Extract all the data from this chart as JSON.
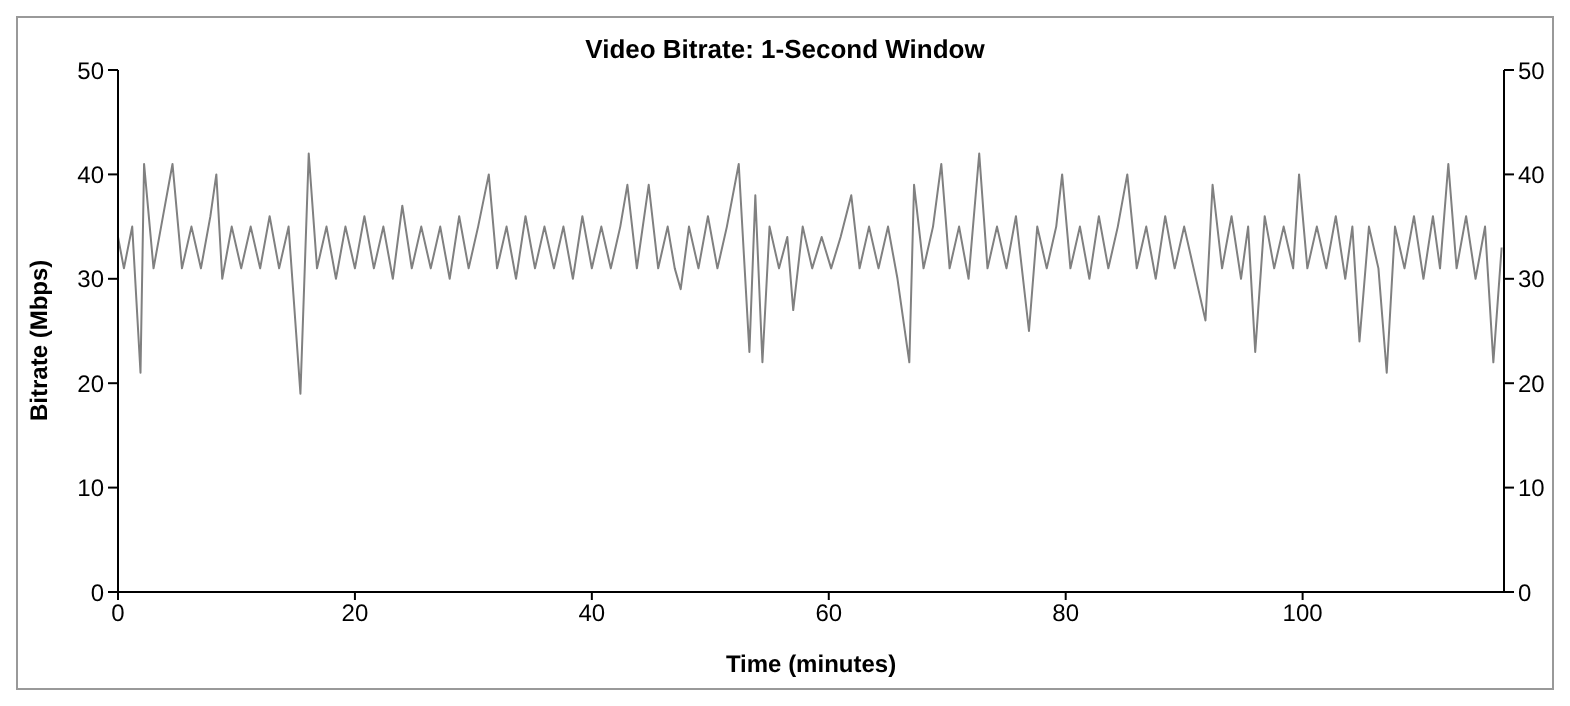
{
  "chart_data": {
    "type": "line",
    "title": "Video Bitrate: 1-Second Window",
    "xlabel": "Time (minutes)",
    "ylabel": "Bitrate (Mbps)",
    "x": [
      0,
      0.5,
      1.2,
      1.9,
      2.2,
      3,
      3.8,
      4.6,
      5.4,
      6.2,
      7,
      7.8,
      8.3,
      8.8,
      9.6,
      10.4,
      11.2,
      12,
      12.8,
      13.6,
      14.4,
      15.4,
      16.1,
      16.8,
      17.6,
      18.4,
      19.2,
      20,
      20.8,
      21.6,
      22.4,
      23.2,
      24,
      24.8,
      25.6,
      26.4,
      27.2,
      28,
      28.8,
      29.6,
      30.4,
      31.3,
      32,
      32.8,
      33.6,
      34.4,
      35.2,
      36,
      36.8,
      37.6,
      38.4,
      39.2,
      40,
      40.8,
      41.6,
      42.4,
      43,
      43.8,
      44.8,
      45.6,
      46.4,
      47,
      47.5,
      48.2,
      49,
      49.8,
      50.6,
      51.4,
      52.4,
      53.3,
      53.8,
      54.4,
      55,
      55.8,
      56.5,
      57,
      57.8,
      58.6,
      59.4,
      60.2,
      61,
      61.9,
      62.6,
      63.4,
      64.2,
      65,
      65.8,
      66.8,
      67.2,
      68,
      68.8,
      69.5,
      70.2,
      71,
      71.8,
      72.7,
      73.4,
      74.2,
      75,
      75.8,
      76.9,
      77.6,
      78.4,
      79.2,
      79.7,
      80.4,
      81.2,
      82,
      82.8,
      83.6,
      84.4,
      85.2,
      86,
      86.8,
      87.6,
      88.4,
      89.2,
      90,
      90.8,
      91.8,
      92.4,
      93.2,
      94,
      94.8,
      95.4,
      96,
      96.8,
      97.6,
      98.4,
      99.2,
      99.7,
      100.4,
      101.2,
      102,
      102.8,
      103.6,
      104.2,
      104.8,
      105.6,
      106.4,
      107.1,
      107.8,
      108.6,
      109.4,
      110.2,
      111,
      111.6,
      112.3,
      113,
      113.8,
      114.6,
      115.4,
      116.1,
      116.8
    ],
    "series": [
      {
        "color": "#808080",
        "values": [
          34,
          31,
          35,
          21,
          41,
          31,
          36,
          41,
          31,
          35,
          31,
          36,
          40,
          30,
          35,
          31,
          35,
          31,
          36,
          31,
          35,
          19,
          42,
          31,
          35,
          30,
          35,
          31,
          36,
          31,
          35,
          30,
          37,
          31,
          35,
          31,
          35,
          30,
          36,
          31,
          35,
          40,
          31,
          35,
          30,
          36,
          31,
          35,
          31,
          35,
          30,
          36,
          31,
          35,
          31,
          35,
          39,
          31,
          39,
          31,
          35,
          31,
          29,
          35,
          31,
          36,
          31,
          35,
          41,
          23,
          38,
          22,
          35,
          31,
          34,
          27,
          35,
          31,
          34,
          31,
          34,
          38,
          31,
          35,
          31,
          35,
          30,
          22,
          39,
          31,
          35,
          41,
          31,
          35,
          30,
          42,
          31,
          35,
          31,
          36,
          25,
          35,
          31,
          35,
          40,
          31,
          35,
          30,
          36,
          31,
          35,
          40,
          31,
          35,
          30,
          36,
          31,
          35,
          31,
          26,
          39,
          31,
          36,
          30,
          35,
          23,
          36,
          31,
          35,
          31,
          40,
          31,
          35,
          31,
          36,
          30,
          35,
          24,
          35,
          31,
          21,
          35,
          31,
          36,
          30,
          36,
          31,
          41,
          31,
          36,
          30,
          35,
          22,
          33
        ]
      }
    ],
    "xlim": [
      0,
      117
    ],
    "xticks": [
      0,
      20,
      40,
      60,
      80,
      100
    ],
    "ylim": [
      0,
      50
    ],
    "yticks": [
      0,
      10,
      20,
      30,
      40,
      50
    ],
    "y2lim": [
      0,
      50
    ],
    "y2ticks": [
      0,
      10,
      20,
      30,
      40,
      50
    ],
    "grid": false,
    "marker": "none",
    "line_style": "solid"
  }
}
